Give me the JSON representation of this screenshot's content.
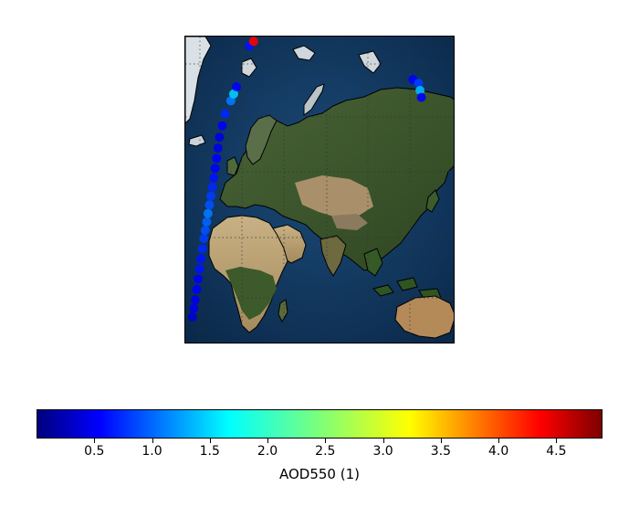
{
  "map": {
    "projection": "Miller cylindrical",
    "extent": {
      "lon_min": -30,
      "lon_max": 160,
      "lat_min": -40,
      "lat_max": 82
    },
    "graticule": {
      "lon_step": 30,
      "lat_step": 20,
      "style": "dotted"
    },
    "basemap": "satellite imagery (Blue Marble style)",
    "colors": {
      "ocean": "#0e3560",
      "land_desert": "#b49a6c",
      "land_veg": "#3f5a2a",
      "ice": "#e8eef2",
      "coast": "#000000"
    }
  },
  "scatter": {
    "variable": "AOD550",
    "description": "satellite ground-track AOD550 points",
    "points": [
      {
        "lon": -25,
        "lat": -28,
        "v": 0.4
      },
      {
        "lon": -24,
        "lat": -24,
        "v": 0.5
      },
      {
        "lon": -23,
        "lat": -20,
        "v": 0.5
      },
      {
        "lon": -22,
        "lat": -15,
        "v": 0.6
      },
      {
        "lon": -21,
        "lat": -10,
        "v": 0.6
      },
      {
        "lon": -20,
        "lat": -5,
        "v": 0.7
      },
      {
        "lon": -19,
        "lat": 0,
        "v": 0.7
      },
      {
        "lon": -18,
        "lat": 5,
        "v": 0.8
      },
      {
        "lon": -17,
        "lat": 10,
        "v": 0.9
      },
      {
        "lon": -16,
        "lat": 14,
        "v": 1.0
      },
      {
        "lon": -15,
        "lat": 18,
        "v": 1.1
      },
      {
        "lon": -14,
        "lat": 22,
        "v": 1.2
      },
      {
        "lon": -13,
        "lat": 26,
        "v": 1.0
      },
      {
        "lon": -12,
        "lat": 30,
        "v": 0.9
      },
      {
        "lon": -11,
        "lat": 34,
        "v": 0.8
      },
      {
        "lon": -10,
        "lat": 38,
        "v": 0.7
      },
      {
        "lon": -9,
        "lat": 42,
        "v": 0.6
      },
      {
        "lon": -8,
        "lat": 46,
        "v": 0.6
      },
      {
        "lon": -7,
        "lat": 50,
        "v": 0.5
      },
      {
        "lon": -6,
        "lat": 54,
        "v": 0.5
      },
      {
        "lon": -4,
        "lat": 58,
        "v": 0.6
      },
      {
        "lon": -2,
        "lat": 62,
        "v": 0.8
      },
      {
        "lon": 2,
        "lat": 66,
        "v": 1.2
      },
      {
        "lon": 4,
        "lat": 68,
        "v": 1.6
      },
      {
        "lon": 6,
        "lat": 70,
        "v": 0.6
      },
      {
        "lon": 15,
        "lat": 80,
        "v": 0.7
      },
      {
        "lon": 18,
        "lat": 81,
        "v": 4.3
      },
      {
        "lon": 130,
        "lat": 72,
        "v": 0.6
      },
      {
        "lon": 134,
        "lat": 71,
        "v": 0.9
      },
      {
        "lon": 135,
        "lat": 69,
        "v": 1.5
      },
      {
        "lon": 136,
        "lat": 67,
        "v": 0.6
      }
    ]
  },
  "colorbar": {
    "label": "AOD550 (1)",
    "vmin": 0.0,
    "vmax": 4.9,
    "colormap": "jet",
    "ticks": [
      "0.5",
      "1.0",
      "1.5",
      "2.0",
      "2.5",
      "3.0",
      "3.5",
      "4.0",
      "4.5"
    ],
    "tick_values": [
      0.5,
      1.0,
      1.5,
      2.0,
      2.5,
      3.0,
      3.5,
      4.0,
      4.5
    ]
  }
}
